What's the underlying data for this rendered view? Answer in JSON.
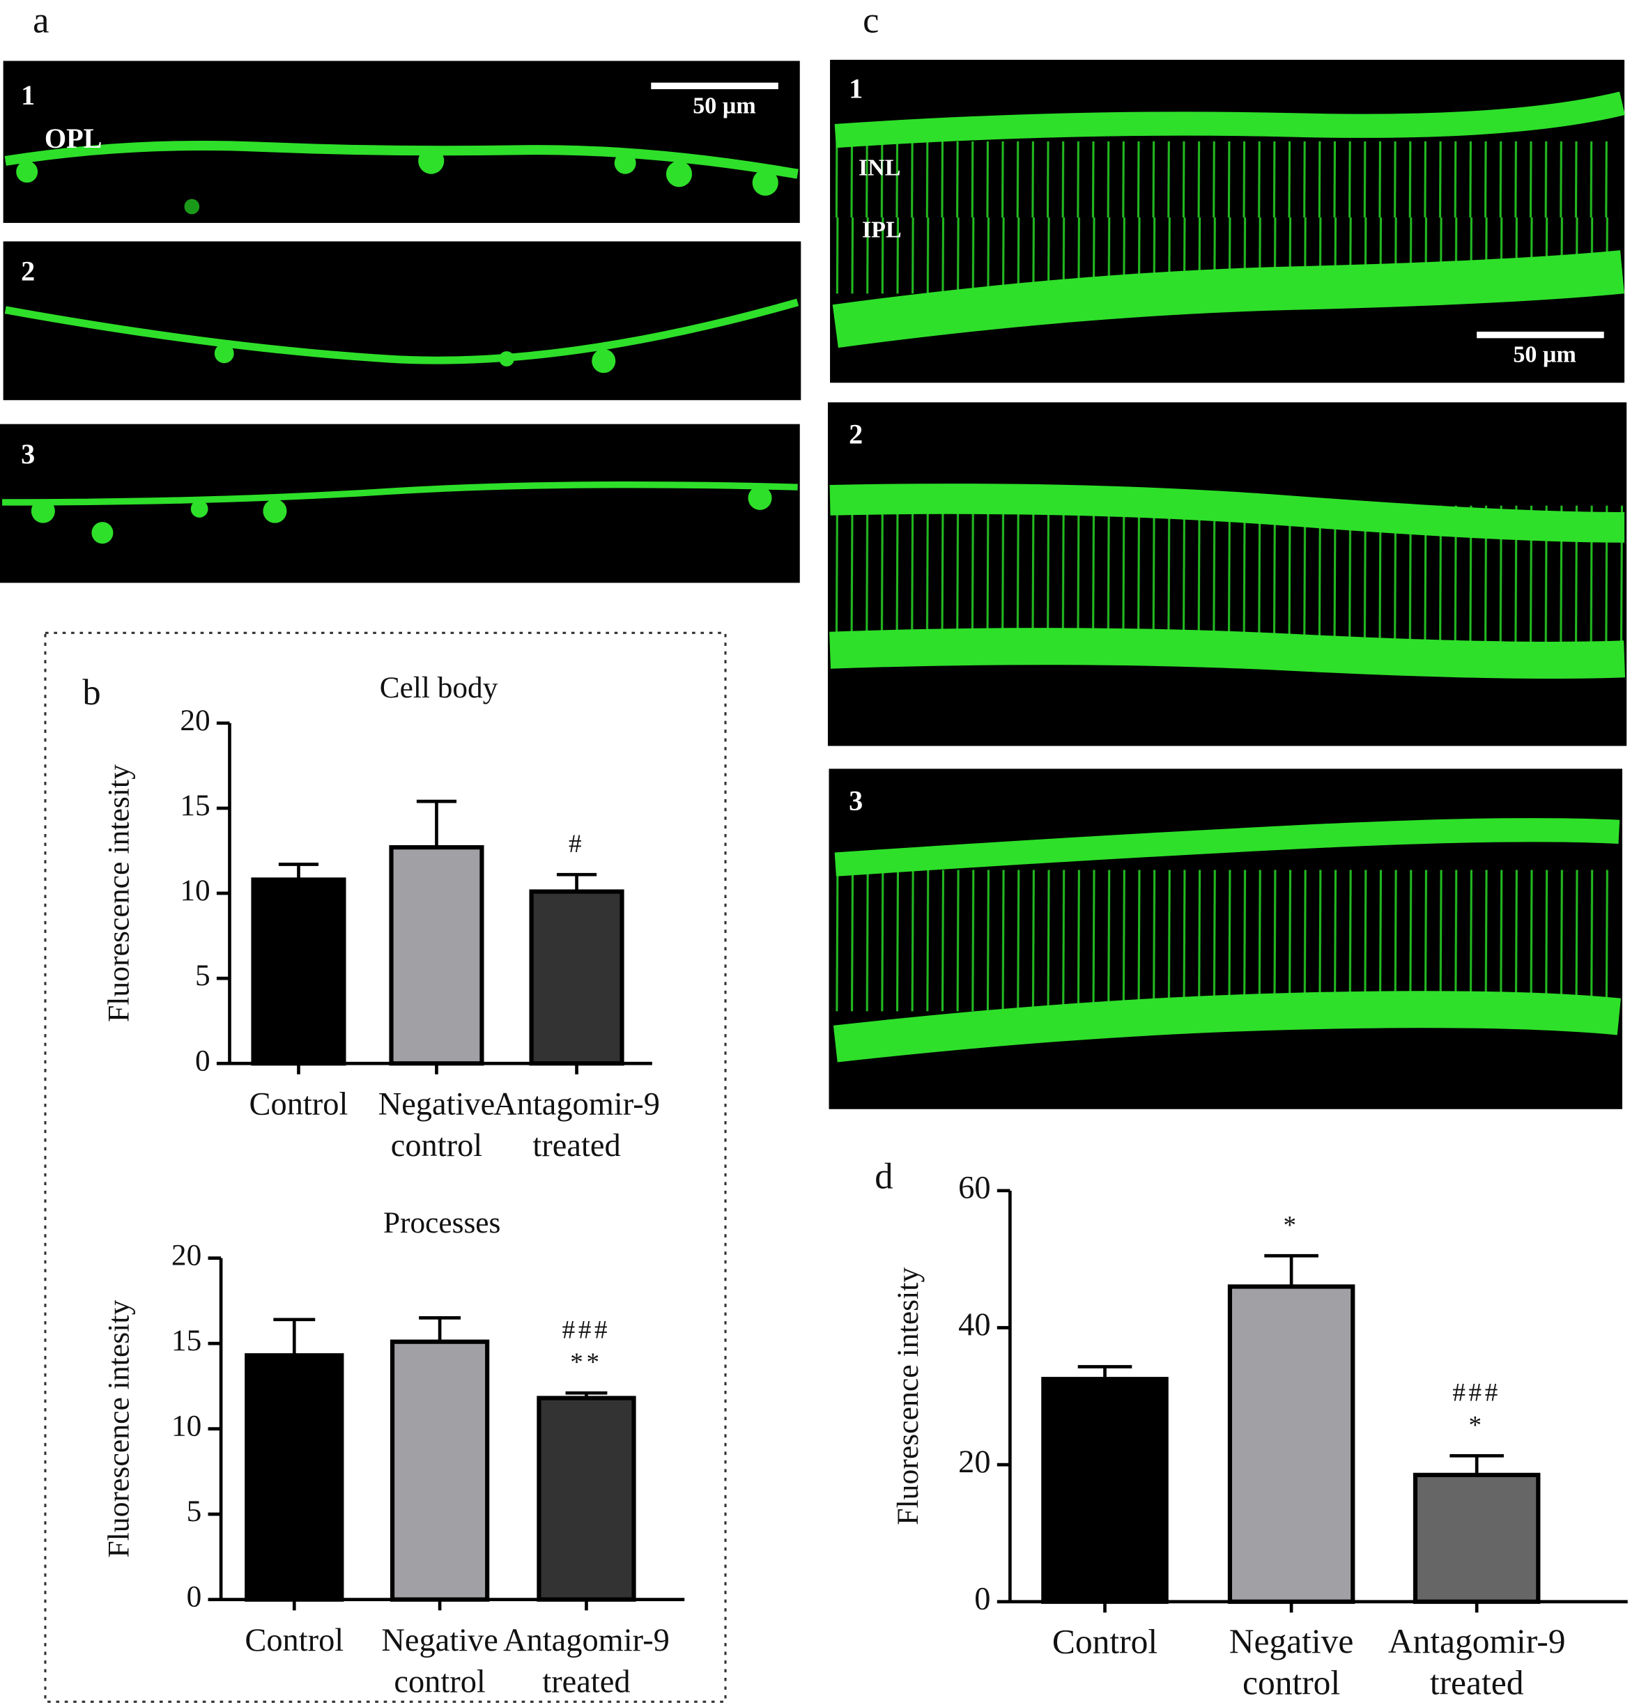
{
  "figure": {
    "panel_a": {
      "label": "a",
      "images": [
        "1",
        "2",
        "3"
      ],
      "layer": "OPL",
      "scale_bar": "50 µm"
    },
    "panel_b": {
      "label": "b"
    },
    "panel_c": {
      "label": "c",
      "images": [
        "1",
        "2",
        "3"
      ],
      "layers": [
        "INL",
        "IPL"
      ],
      "scale_bar": "50 µm"
    },
    "panel_d": {
      "label": "d"
    }
  },
  "chart_data": [
    {
      "type": "bar",
      "title": "Cell body",
      "y_label": "Fluorescence intesity",
      "categories": [
        "Control",
        "Negative control",
        "Antagomir-9 treated"
      ],
      "values": [
        10.8,
        12.7,
        10.1
      ],
      "errors": [
        0.9,
        2.7,
        1.0
      ],
      "colors": [
        "#000000",
        "#a1a0a5",
        "#333333"
      ],
      "annotations": [
        [],
        [],
        [
          "#"
        ]
      ],
      "ylim": [
        0,
        20
      ],
      "yticks": [
        0,
        5,
        10,
        15,
        20
      ]
    },
    {
      "type": "bar",
      "title": "Processes",
      "y_label": "Fluorescence intesity",
      "categories": [
        "Control",
        "Negative control",
        "Antagomir-9 treated"
      ],
      "values": [
        14.3,
        15.1,
        11.8
      ],
      "errors": [
        2.1,
        1.4,
        0.3
      ],
      "colors": [
        "#000000",
        "#a1a0a5",
        "#333333"
      ],
      "annotations": [
        [],
        [],
        [
          "###",
          "**"
        ]
      ],
      "ylim": [
        0,
        20
      ],
      "yticks": [
        0,
        5,
        10,
        15,
        20
      ]
    },
    {
      "type": "bar",
      "y_label": "Fluorescence intesity",
      "categories": [
        "Control",
        "Negative control",
        "Antagomir-9 treated"
      ],
      "values": [
        32.5,
        46,
        18.5
      ],
      "errors": [
        1.8,
        4.5,
        2.8
      ],
      "colors": [
        "#000000",
        "#a1a0a5",
        "#666666"
      ],
      "annotations": [
        [],
        [
          "*"
        ],
        [
          "###",
          "*"
        ]
      ],
      "ylim": [
        0,
        60
      ],
      "yticks": [
        0,
        20,
        40,
        60
      ]
    }
  ]
}
